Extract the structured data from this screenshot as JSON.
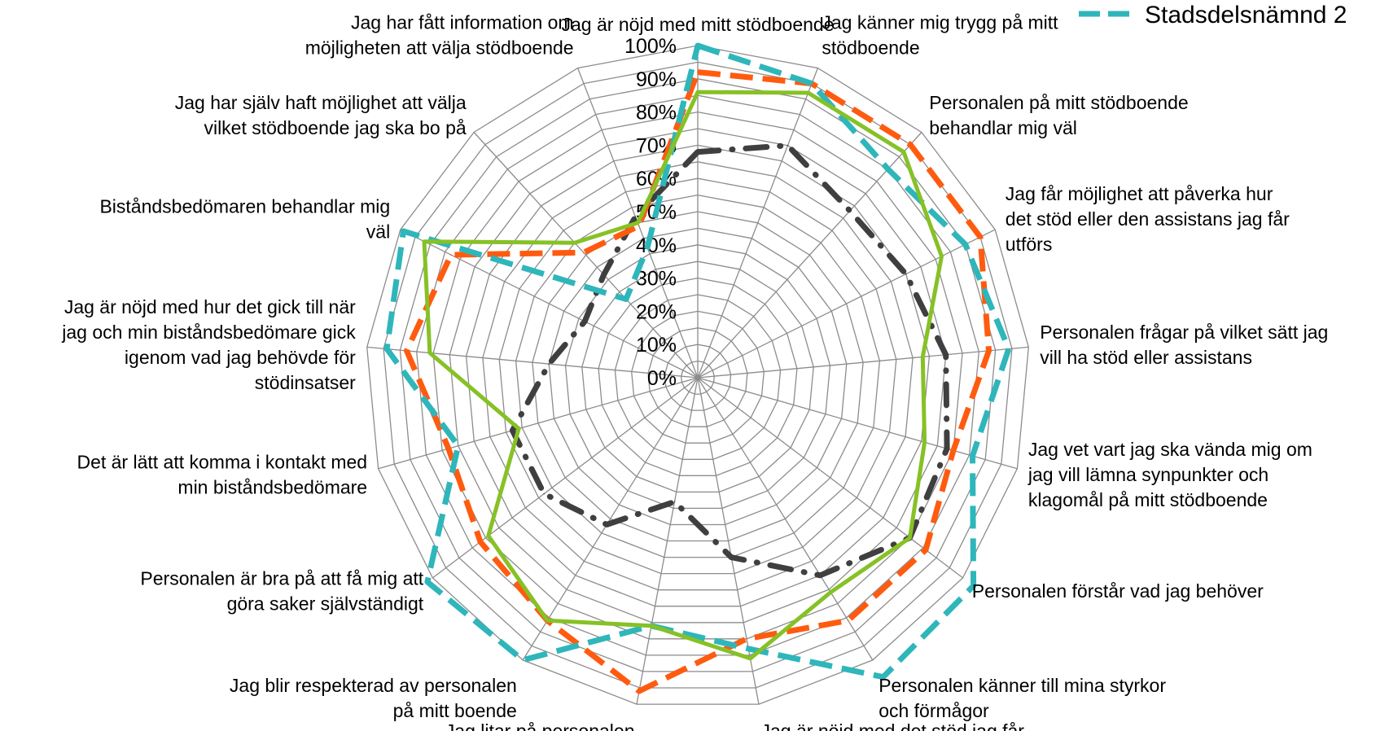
{
  "chart_data": {
    "type": "radar",
    "title": "",
    "categories": [
      "Jag är nöjd med mitt stödboende",
      "Jag känner mig trygg på mitt stödboende",
      "Personalen på mitt stödboende behandlar mig väl",
      "Jag får möjlighet att påverka hur det stöd eller den assistans jag får utförs",
      "Personalen frågar på vilket sätt jag vill ha stöd eller assistans",
      "Jag vet vart jag ska vända mig om jag vill lämna synpunkter och klagomål på mitt stödboende",
      "Personalen förstår vad jag behöver",
      "Personalen känner till mina styrkor och förmågor",
      "Jag är nöjd med det stöd jag får",
      "Jag litar på personalen",
      "Jag blir respekterad av personalen på mitt boende",
      "Personalen är bra på att få mig att göra saker självständigt",
      "Det är lätt att komma i kontakt med min biståndsbedömare",
      "Jag är nöjd med hur det gick till när jag och min biståndsbedömare gick igenom vad jag behövde för stödinsatser",
      "Biståndsbedömaren behandlar mig väl",
      "Jag har själv haft möjlighet att välja vilket stödboende jag ska bo på",
      "Jag har fått information om möjligheten att välja stödboende"
    ],
    "category_lines": [
      [
        "Jag är nöjd med mitt stödboende"
      ],
      [
        "Jag känner mig trygg på mitt",
        "stödboende"
      ],
      [
        "Personalen på mitt stödboende",
        "behandlar mig väl"
      ],
      [
        "Jag får möjlighet att påverka hur",
        "det stöd eller den assistans jag får",
        "utförs"
      ],
      [
        "Personalen frågar på vilket sätt jag",
        "vill ha stöd eller assistans"
      ],
      [
        "Jag vet vart jag ska vända mig om",
        "jag vill lämna synpunkter och",
        "klagomål på mitt stödboende"
      ],
      [
        "Personalen förstår vad jag behöver"
      ],
      [
        "Personalen känner till mina styrkor",
        "och förmågor"
      ],
      [
        "Jag är nöjd med det stöd jag får"
      ],
      [
        "Jag litar på personalen"
      ],
      [
        "Jag blir respekterad av personalen",
        "på mitt boende"
      ],
      [
        "Personalen är bra på att få mig att",
        "göra saker självständigt"
      ],
      [
        "Det är lätt att komma i kontakt med",
        "min biståndsbedömare"
      ],
      [
        "Jag är nöjd med hur det gick till när",
        "jag och min biståndsbedömare gick",
        "igenom vad jag behövde för",
        "stödinsatser"
      ],
      [
        "Biståndsbedömaren behandlar mig",
        "väl"
      ],
      [
        "Jag har själv haft möjlighet att välja",
        "vilket stödboende jag ska bo på"
      ],
      [
        "Jag har fått information om",
        "möjligheten att välja stödboende"
      ]
    ],
    "r_ticks": [
      "0%",
      "10%",
      "20%",
      "30%",
      "40%",
      "50%",
      "60%",
      "70%",
      "80%",
      "90%",
      "100%"
    ],
    "r_range": [
      0,
      100
    ],
    "gridlines": 20,
    "series": [
      {
        "name": "",
        "color": "#3f3f3f",
        "style": "dash-dot",
        "values": [
          68,
          75,
          68,
          70,
          75,
          78,
          80,
          70,
          55,
          38,
          52,
          58,
          58,
          45,
          38,
          42,
          52
        ]
      },
      {
        "name": "",
        "color": "#ff5b0f",
        "style": "dash",
        "values": [
          92,
          95,
          95,
          95,
          88,
          80,
          86,
          86,
          80,
          96,
          86,
          82,
          78,
          88,
          83,
          51,
          49
        ]
      },
      {
        "name": "Stadsdelsnämnd 2",
        "color": "#2eb6bb",
        "style": "dash",
        "values": [
          100,
          95,
          85,
          90,
          94,
          86,
          104,
          106,
          83,
          76,
          100,
          102,
          75,
          94,
          99,
          32,
          42
        ]
      },
      {
        "name": "",
        "color": "#86c126",
        "style": "solid",
        "values": [
          86,
          92,
          92,
          82,
          68,
          71,
          80,
          76,
          86,
          76,
          86,
          79,
          56,
          81,
          92,
          55,
          50
        ]
      }
    ],
    "legend": {
      "position": "top-right",
      "label": "Stadsdelsnämnd 2"
    },
    "colors": {
      "grid": "#8c8c8c",
      "background": "#ffffff"
    }
  }
}
